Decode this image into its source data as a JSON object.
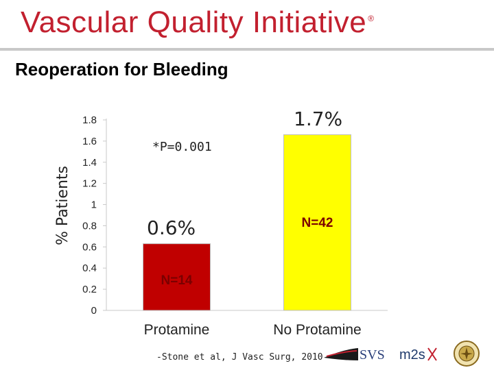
{
  "header": {
    "title": "Vascular Quality Initiative",
    "registered_mark": "®"
  },
  "slide": {
    "title": "Reoperation for Bleeding"
  },
  "chart_data": {
    "type": "bar",
    "ylabel": "% Patients",
    "ylim": [
      0,
      1.8
    ],
    "yticks": [
      "0",
      "0.2",
      "0.4",
      "0.6",
      "0.8",
      "1",
      "1.2",
      "1.4",
      "1.6",
      "1.8"
    ],
    "categories": [
      "Protamine",
      "No Protamine"
    ],
    "values": [
      0.63,
      1.66
    ],
    "value_labels": [
      "0.6%",
      "1.7%"
    ],
    "n_labels": [
      "N=14",
      "N=42"
    ],
    "bar_colors": [
      "#c00000",
      "#ffff00"
    ],
    "n_label_colors": [
      "#7a0000",
      "#7a0000"
    ],
    "annotation": "*P=0.001",
    "grid": false
  },
  "footer": {
    "citation": "-Stone et al, J Vasc Surg, 2010",
    "logo_svs_text": "SVS",
    "logo_m2s_text": "m2s"
  },
  "colors": {
    "brand_red": "#c2202f"
  }
}
